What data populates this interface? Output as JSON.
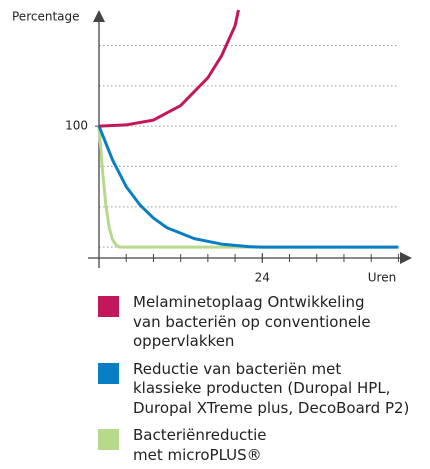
{
  "chart_data": {
    "type": "line",
    "ylabel": "Percentage",
    "xlabel": "Uren",
    "xlim": [
      0,
      46
    ],
    "ylim": [
      -9,
      196
    ],
    "xticks": [
      24
    ],
    "xminorticks": [
      0,
      4,
      8,
      12,
      16,
      20,
      24,
      28,
      32,
      36,
      40,
      44
    ],
    "yticks": [
      100
    ],
    "ygrid": [
      0,
      33.3,
      66.7,
      100,
      133.3,
      166.7
    ],
    "grid": true,
    "series": [
      {
        "name": "Melaminetoplaag Ontwikkeling\nvan bacteriën op conventionele\noppervlakken",
        "color": "#c2185b",
        "x": [
          0,
          4,
          8,
          12,
          16,
          18,
          20,
          20.5
        ],
        "values": [
          100,
          101,
          105,
          117,
          140,
          158,
          183,
          196
        ]
      },
      {
        "name": "Reductie van bacteriën met\nklassieke producten (Duropal HPL,\nDuropal XTreme plus, DecoBoard P2)",
        "color": "#0a7ec4",
        "x": [
          0,
          2,
          4,
          6,
          8,
          10,
          14,
          18,
          22,
          24,
          44
        ],
        "values": [
          100,
          72,
          50,
          35,
          24,
          16,
          7,
          2.5,
          0.4,
          0,
          0
        ]
      },
      {
        "name": "Bacteriënreductie\nmet microPLUS®",
        "color": "#b6d98c",
        "x": [
          0,
          0.5,
          1,
          1.5,
          2,
          2.5,
          3,
          44
        ],
        "values": [
          100,
          64,
          35,
          16,
          6,
          2,
          0,
          0
        ]
      }
    ]
  }
}
